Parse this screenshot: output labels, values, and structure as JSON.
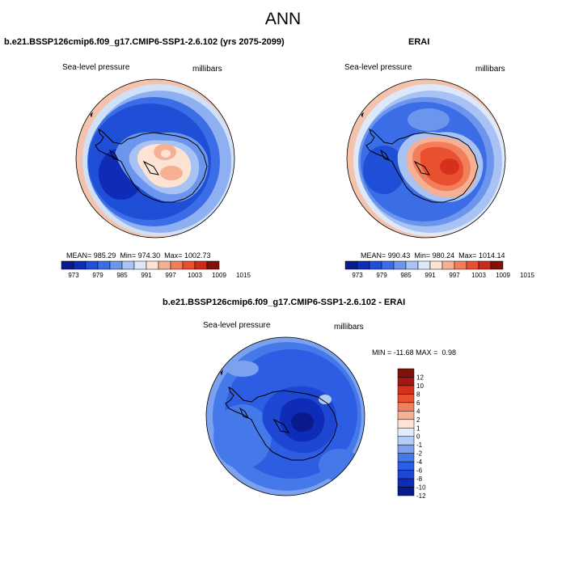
{
  "title": "ANN",
  "colors": {
    "abs_scale": [
      "#0a1a8a",
      "#0f2cb8",
      "#1f4fd6",
      "#3b6ee6",
      "#6c95ee",
      "#a8c2f3",
      "#dde8fa",
      "#fde3d3",
      "#f6b194",
      "#f27e5b",
      "#e9502f",
      "#c92a19",
      "#7f1108"
    ],
    "diff_scale": [
      "#0a1a8a",
      "#0f2cb8",
      "#1d47d2",
      "#2c5de2",
      "#4579e9",
      "#7ca1ef",
      "#b5ccf5",
      "#e2ecfb",
      "#fde3d3",
      "#f6b194",
      "#f27e5b",
      "#e9502f",
      "#d5301b",
      "#a31710",
      "#7f1108"
    ],
    "coast": "#000000"
  },
  "chart_data": [
    {
      "type": "heatmap",
      "projection": "south-polar-stereographic",
      "title": "b.e21.BSSP126cmip6.f09_g17.CMIP6-SSP1-2.6.102 (yrs 2075-2099)",
      "left_label": "Sea-level pressure",
      "right_label": "millibars",
      "mean_label": "MEAN=",
      "mean": "985.29",
      "min_label": "Min=",
      "min": "974.30",
      "max_label": "Max=",
      "max": "1002.73",
      "colorbar_ticks": [
        "973",
        "979",
        "985",
        "991",
        "997",
        "1003",
        "1009",
        "1015"
      ]
    },
    {
      "type": "heatmap",
      "projection": "south-polar-stereographic",
      "title": "ERAI",
      "left_label": "Sea-level pressure",
      "right_label": "millibars",
      "mean_label": "MEAN=",
      "mean": "990.43",
      "min_label": "Min=",
      "min": "980.24",
      "max_label": "Max=",
      "max": "1014.14",
      "colorbar_ticks": [
        "973",
        "979",
        "985",
        "991",
        "997",
        "1003",
        "1009",
        "1015"
      ]
    },
    {
      "type": "heatmap",
      "projection": "south-polar-stereographic",
      "title": "b.e21.BSSP126cmip6.f09_g17.CMIP6-SSP1-2.6.102 - ERAI",
      "left_label": "Sea-level pressure",
      "right_label": "millibars",
      "min_label": "MIN =",
      "min": "-11.68",
      "max_label": "MAX =",
      "max": "0.98",
      "colorbar_ticks": [
        "12",
        "10",
        "8",
        "6",
        "4",
        "2",
        "1",
        "0",
        "-1",
        "-2",
        "-4",
        "-6",
        "-8",
        "-10",
        "-12"
      ]
    }
  ]
}
